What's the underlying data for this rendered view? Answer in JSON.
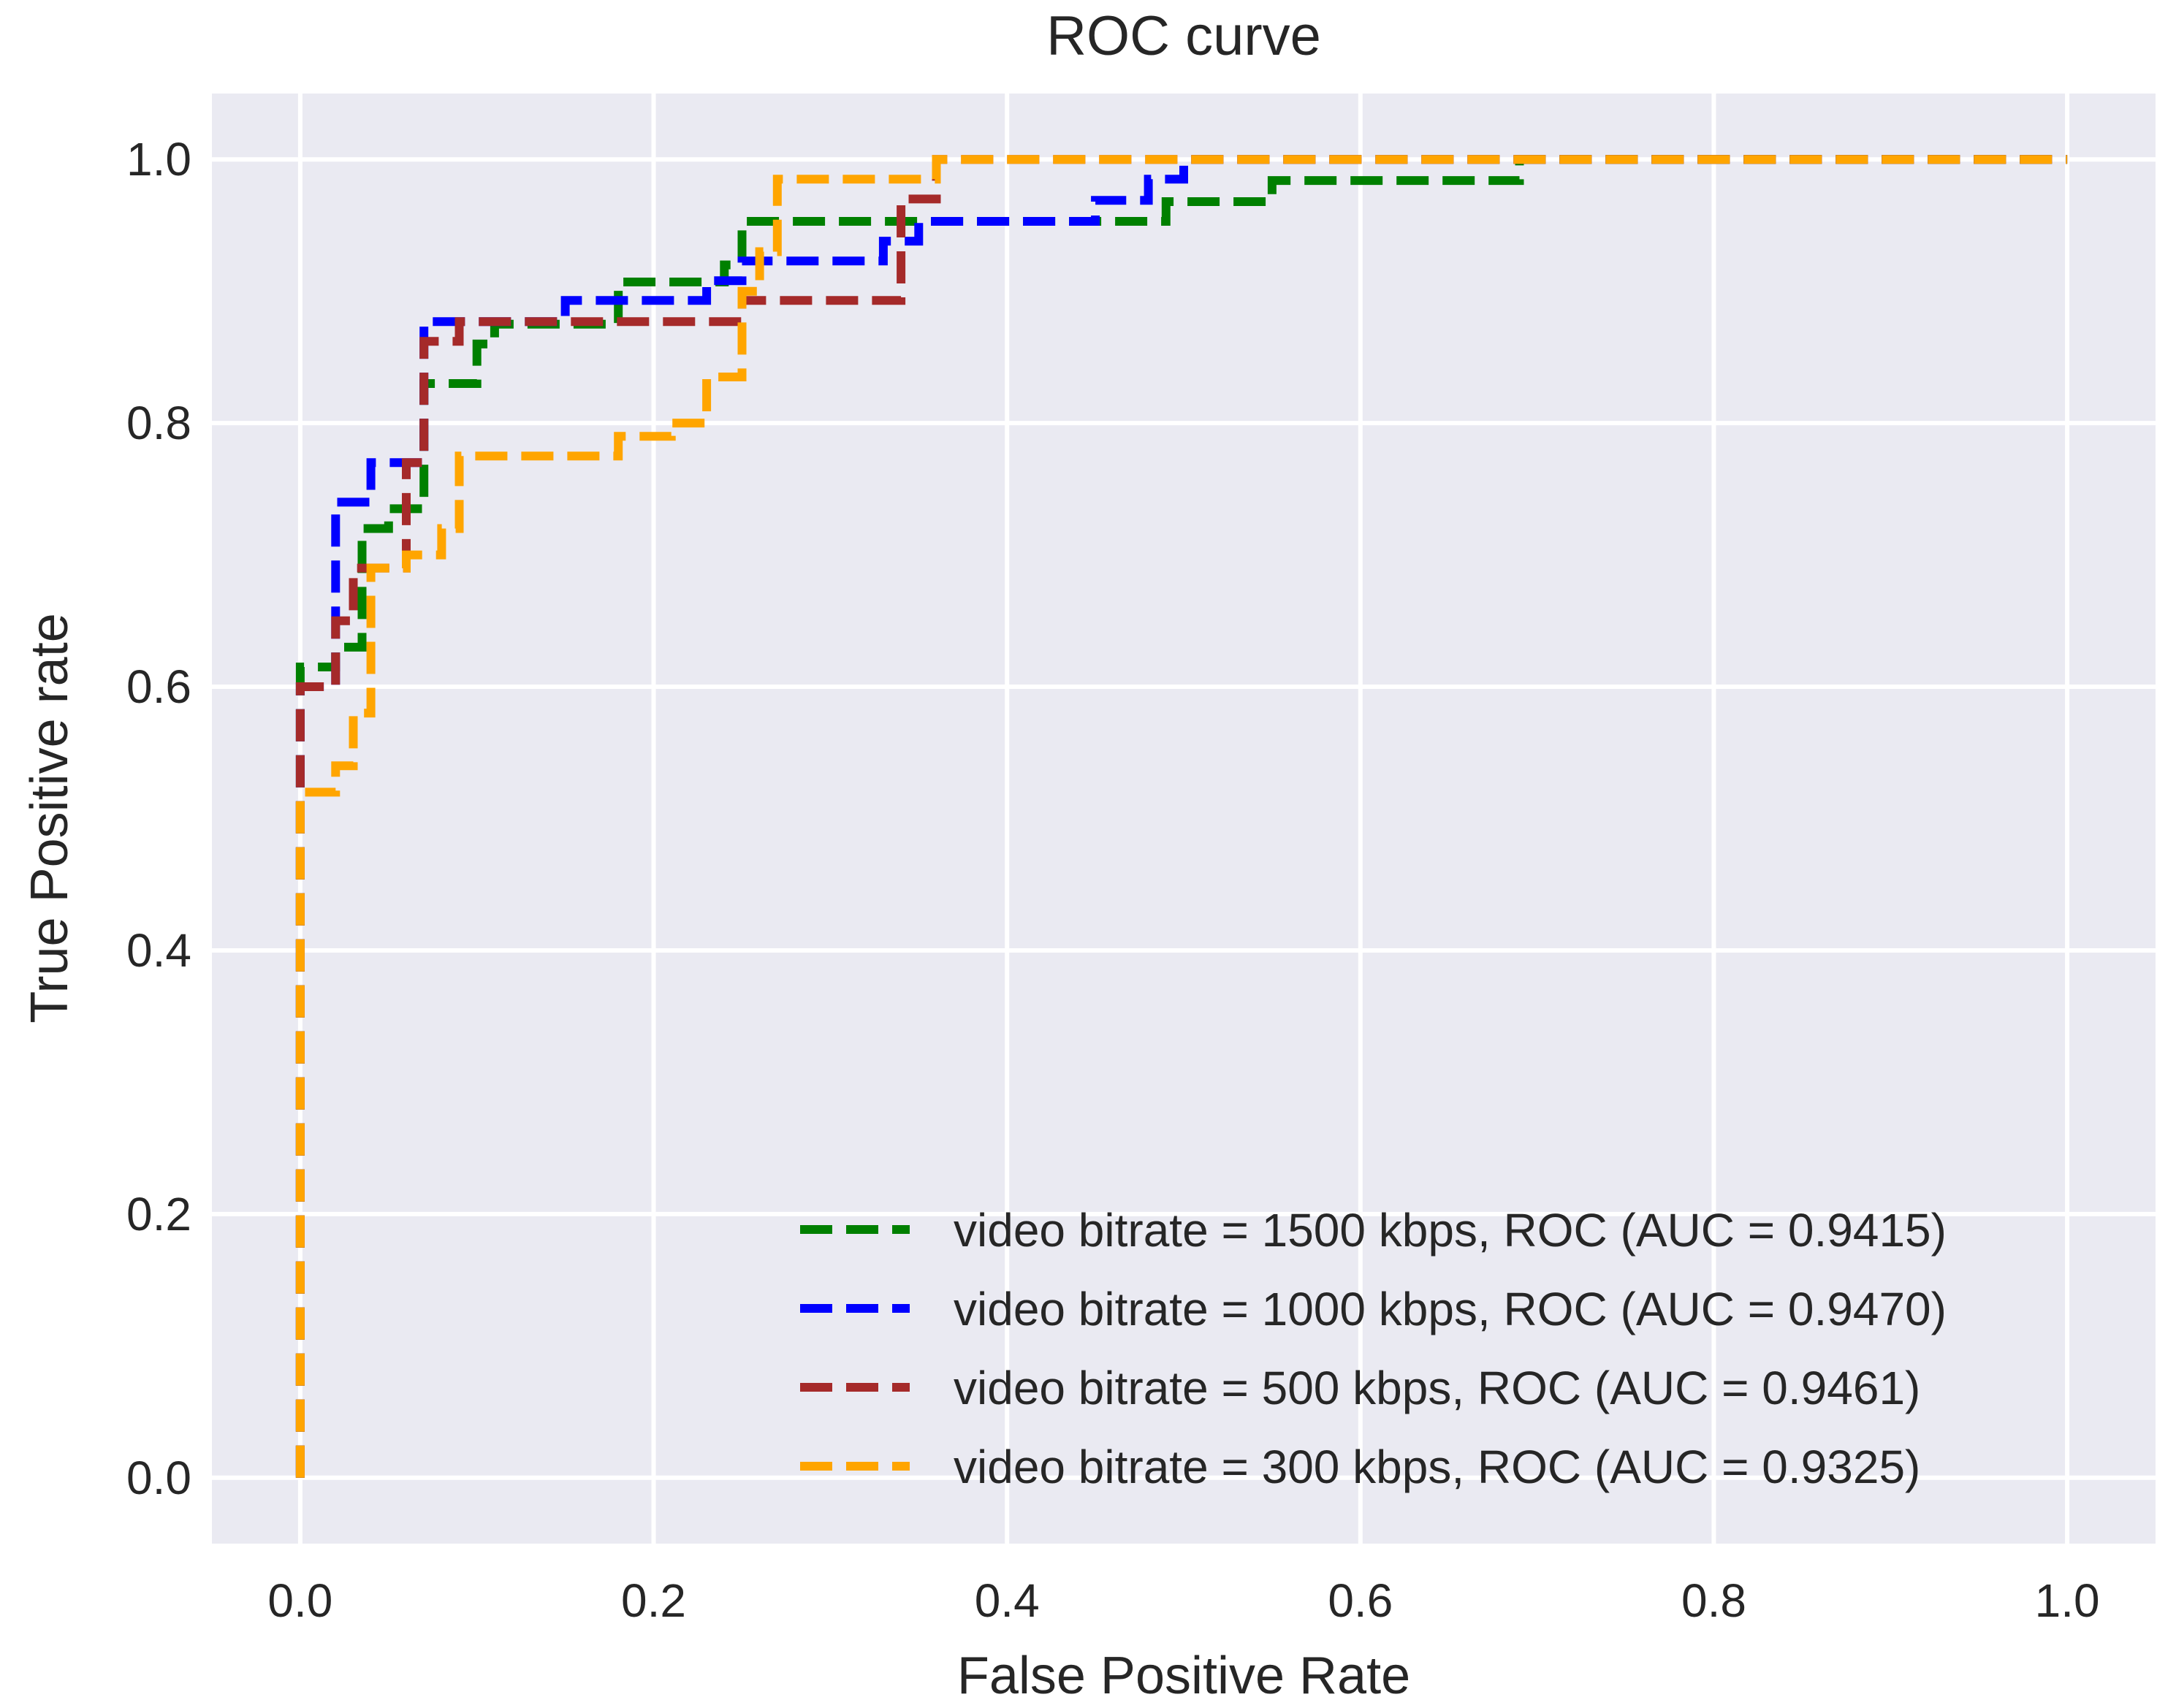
{
  "chart_data": {
    "type": "line",
    "title": "ROC curve",
    "xlabel": "False Positive Rate",
    "ylabel": "True Positive rate",
    "xlim": [
      -0.05,
      1.05
    ],
    "ylim": [
      -0.05,
      1.05
    ],
    "xticks": [
      "0.0",
      "0.2",
      "0.4",
      "0.6",
      "0.8",
      "1.0"
    ],
    "yticks": [
      "0.0",
      "0.2",
      "0.4",
      "0.6",
      "0.8",
      "1.0"
    ],
    "xtick_values": [
      0.0,
      0.2,
      0.4,
      0.6,
      0.8,
      1.0
    ],
    "ytick_values": [
      0.0,
      0.2,
      0.4,
      0.6,
      0.8,
      1.0
    ],
    "grid": true,
    "legend_position": "lower-right",
    "background": "#EAEAF2",
    "series": [
      {
        "name": "video bitrate = 1500 kbps, ROC (AUC = 0.9415)",
        "color": "#008000",
        "x": [
          0.0,
          0.0,
          0.02,
          0.02,
          0.035,
          0.035,
          0.05,
          0.05,
          0.07,
          0.07,
          0.1,
          0.1,
          0.11,
          0.11,
          0.18,
          0.18,
          0.24,
          0.24,
          0.25,
          0.25,
          0.49,
          0.49,
          0.55,
          0.55,
          0.69,
          0.69,
          1.0
        ],
        "y": [
          0.0,
          0.615,
          0.615,
          0.63,
          0.63,
          0.72,
          0.72,
          0.735,
          0.735,
          0.83,
          0.83,
          0.86,
          0.86,
          0.875,
          0.875,
          0.907,
          0.907,
          0.92,
          0.92,
          0.953,
          0.953,
          0.968,
          0.968,
          0.984,
          0.984,
          1.0,
          1.0
        ]
      },
      {
        "name": "video bitrate = 1000 kbps, ROC (AUC = 0.9470)",
        "color": "#0000FF",
        "x": [
          0.0,
          0.0,
          0.02,
          0.02,
          0.04,
          0.04,
          0.07,
          0.07,
          0.15,
          0.15,
          0.23,
          0.23,
          0.25,
          0.25,
          0.33,
          0.33,
          0.35,
          0.35,
          0.45,
          0.45,
          0.48,
          0.48,
          0.5,
          0.5,
          1.0
        ],
        "y": [
          0.0,
          0.6,
          0.6,
          0.74,
          0.74,
          0.77,
          0.77,
          0.877,
          0.877,
          0.893,
          0.893,
          0.908,
          0.908,
          0.923,
          0.923,
          0.938,
          0.938,
          0.953,
          0.953,
          0.969,
          0.969,
          0.985,
          0.985,
          1.0,
          1.0
        ]
      },
      {
        "name": "video bitrate = 500 kbps, ROC (AUC = 0.9461)",
        "color": "#A52A2A",
        "x": [
          0.0,
          0.0,
          0.02,
          0.02,
          0.03,
          0.03,
          0.06,
          0.06,
          0.07,
          0.07,
          0.09,
          0.09,
          0.25,
          0.25,
          0.34,
          0.34,
          0.36,
          0.36,
          1.0
        ],
        "y": [
          0.0,
          0.6,
          0.6,
          0.65,
          0.65,
          0.69,
          0.69,
          0.77,
          0.77,
          0.862,
          0.862,
          0.877,
          0.877,
          0.893,
          0.893,
          0.97,
          0.97,
          1.0,
          1.0
        ]
      },
      {
        "name": "video bitrate = 300 kbps, ROC (AUC = 0.9325)",
        "color": "#FFA500",
        "x": [
          0.0,
          0.0,
          0.02,
          0.02,
          0.03,
          0.03,
          0.04,
          0.04,
          0.06,
          0.06,
          0.08,
          0.08,
          0.09,
          0.09,
          0.18,
          0.18,
          0.21,
          0.21,
          0.23,
          0.23,
          0.25,
          0.25,
          0.26,
          0.26,
          0.27,
          0.27,
          0.36,
          0.36,
          1.0
        ],
        "y": [
          0.0,
          0.52,
          0.52,
          0.54,
          0.54,
          0.58,
          0.58,
          0.69,
          0.69,
          0.7,
          0.7,
          0.72,
          0.72,
          0.775,
          0.775,
          0.79,
          0.79,
          0.8,
          0.8,
          0.835,
          0.835,
          0.9,
          0.9,
          0.93,
          0.93,
          0.985,
          0.985,
          1.0,
          1.0
        ]
      }
    ]
  }
}
